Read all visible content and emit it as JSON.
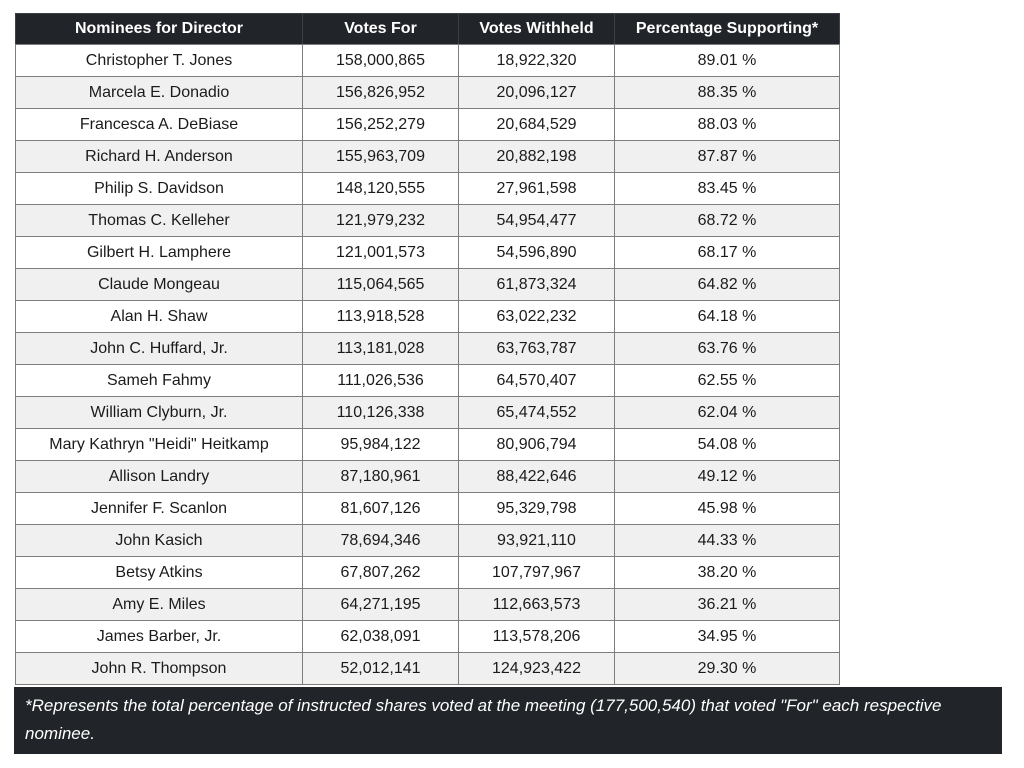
{
  "table": {
    "columns": [
      "Nominees for Director",
      "Votes For",
      "Votes Withheld",
      "Percentage Supporting*"
    ],
    "rows": [
      {
        "nominee": "Christopher T. Jones",
        "votes_for": "158,000,865",
        "votes_withheld": "18,922,320",
        "pct_supporting": "89.01 %"
      },
      {
        "nominee": "Marcela E. Donadio",
        "votes_for": "156,826,952",
        "votes_withheld": "20,096,127",
        "pct_supporting": "88.35 %"
      },
      {
        "nominee": "Francesca A. DeBiase",
        "votes_for": "156,252,279",
        "votes_withheld": "20,684,529",
        "pct_supporting": "88.03 %"
      },
      {
        "nominee": "Richard H. Anderson",
        "votes_for": "155,963,709",
        "votes_withheld": "20,882,198",
        "pct_supporting": "87.87 %"
      },
      {
        "nominee": "Philip S. Davidson",
        "votes_for": "148,120,555",
        "votes_withheld": "27,961,598",
        "pct_supporting": "83.45 %"
      },
      {
        "nominee": "Thomas C. Kelleher",
        "votes_for": "121,979,232",
        "votes_withheld": "54,954,477",
        "pct_supporting": "68.72 %"
      },
      {
        "nominee": "Gilbert H. Lamphere",
        "votes_for": "121,001,573",
        "votes_withheld": "54,596,890",
        "pct_supporting": "68.17 %"
      },
      {
        "nominee": "Claude Mongeau",
        "votes_for": "115,064,565",
        "votes_withheld": "61,873,324",
        "pct_supporting": "64.82 %"
      },
      {
        "nominee": "Alan H. Shaw",
        "votes_for": "113,918,528",
        "votes_withheld": "63,022,232",
        "pct_supporting": "64.18 %"
      },
      {
        "nominee": "John C. Huffard, Jr.",
        "votes_for": "113,181,028",
        "votes_withheld": "63,763,787",
        "pct_supporting": "63.76 %"
      },
      {
        "nominee": "Sameh Fahmy",
        "votes_for": "111,026,536",
        "votes_withheld": "64,570,407",
        "pct_supporting": "62.55 %"
      },
      {
        "nominee": "William Clyburn, Jr.",
        "votes_for": "110,126,338",
        "votes_withheld": "65,474,552",
        "pct_supporting": "62.04 %"
      },
      {
        "nominee": "Mary Kathryn \"Heidi\" Heitkamp",
        "votes_for": "95,984,122",
        "votes_withheld": "80,906,794",
        "pct_supporting": "54.08 %"
      },
      {
        "nominee": "Allison Landry",
        "votes_for": "87,180,961",
        "votes_withheld": "88,422,646",
        "pct_supporting": "49.12 %"
      },
      {
        "nominee": "Jennifer F. Scanlon",
        "votes_for": "81,607,126",
        "votes_withheld": "95,329,798",
        "pct_supporting": "45.98 %"
      },
      {
        "nominee": "John Kasich",
        "votes_for": "78,694,346",
        "votes_withheld": "93,921,110",
        "pct_supporting": "44.33 %"
      },
      {
        "nominee": "Betsy Atkins",
        "votes_for": "67,807,262",
        "votes_withheld": "107,797,967",
        "pct_supporting": "38.20 %"
      },
      {
        "nominee": "Amy E. Miles",
        "votes_for": "64,271,195",
        "votes_withheld": "112,663,573",
        "pct_supporting": "36.21 %"
      },
      {
        "nominee": "James Barber, Jr.",
        "votes_for": "62,038,091",
        "votes_withheld": "113,578,206",
        "pct_supporting": "34.95 %"
      },
      {
        "nominee": "John R. Thompson",
        "votes_for": "52,012,141",
        "votes_withheld": "124,923,422",
        "pct_supporting": "29.30 %"
      }
    ],
    "footnote": "*Represents the total percentage of instructed shares voted at the meeting (177,500,540) that voted \"For\" each respective nominee."
  },
  "colors": {
    "header_background": "#212529",
    "footnote_background": "#212529",
    "alt_row_background": "#f0f0f0",
    "border": "#7d7d7d",
    "header_text": "#ffffff",
    "body_text": "#1b1b1b"
  }
}
